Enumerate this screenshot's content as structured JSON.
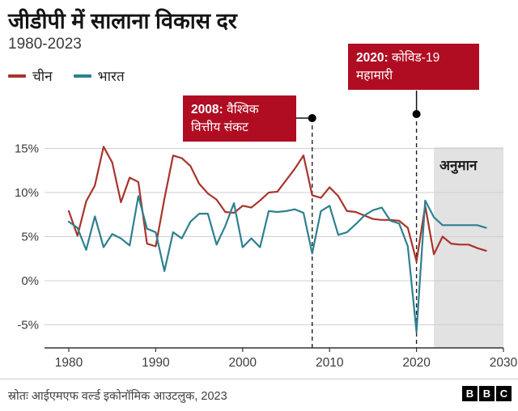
{
  "header": {
    "title": "जीडीपी में सालाना विकास दर",
    "subtitle": "1980-2023"
  },
  "legend": [
    {
      "label": "चीन",
      "color": "#a8342c"
    },
    {
      "label": "भारत",
      "color": "#2e8090"
    }
  ],
  "annotations": [
    {
      "year": 2008,
      "bold": "2008:",
      "text": " वैश्विक वित्तीय संकट",
      "box_color": "#b00d23"
    },
    {
      "year": 2020,
      "bold": "2020:",
      "text": " कोविड-19 महामारी",
      "box_color": "#b00d23"
    }
  ],
  "forecast_label": "अनुमान",
  "footer": {
    "source": "स्रोतः आईएमएफ वर्ल्ड इकोनॉमिक आउटलुक, 2023",
    "logo_letters": [
      "B",
      "B",
      "C"
    ]
  },
  "chart_data": {
    "type": "line",
    "title": "जीडीपी में सालाना विकास दर",
    "subtitle": "1980-2023",
    "xlabel": "",
    "ylabel": "",
    "unit": "%",
    "grid": "horizontal",
    "legend_position": "top-left",
    "xlim": [
      1977,
      2031
    ],
    "ylim": [
      -7.5,
      17
    ],
    "yticks": [
      -5,
      0,
      5,
      10,
      15
    ],
    "xticks": [
      1980,
      1990,
      2000,
      2010,
      2020,
      2030
    ],
    "forecast_start": 2022,
    "forecast_region_color": "#e2e2e2",
    "event_lines": [
      2008,
      2020
    ],
    "x": [
      1980,
      1981,
      1982,
      1983,
      1984,
      1985,
      1986,
      1987,
      1988,
      1989,
      1990,
      1991,
      1992,
      1993,
      1994,
      1995,
      1996,
      1997,
      1998,
      1999,
      2000,
      2001,
      2002,
      2003,
      2004,
      2005,
      2006,
      2007,
      2008,
      2009,
      2010,
      2011,
      2012,
      2013,
      2014,
      2015,
      2016,
      2017,
      2018,
      2019,
      2020,
      2021,
      2022,
      2023,
      2024,
      2025,
      2026,
      2027,
      2028
    ],
    "series": [
      {
        "name": "चीन",
        "color": "#a8342c",
        "values": [
          7.9,
          5.1,
          9.0,
          10.8,
          15.2,
          13.4,
          8.9,
          11.7,
          11.2,
          4.2,
          3.9,
          9.3,
          14.2,
          13.9,
          13.0,
          11.0,
          9.9,
          9.2,
          7.8,
          7.7,
          8.5,
          8.3,
          9.1,
          10.0,
          10.1,
          11.4,
          12.7,
          14.2,
          9.7,
          9.4,
          10.6,
          9.6,
          7.9,
          7.8,
          7.4,
          7.0,
          6.9,
          6.9,
          6.8,
          6.0,
          2.2,
          8.5,
          3.0,
          5.0,
          4.2,
          4.1,
          4.1,
          3.7,
          3.4
        ]
      },
      {
        "name": "भारत",
        "color": "#2e8090",
        "values": [
          6.7,
          6.0,
          3.5,
          7.3,
          3.8,
          5.3,
          4.8,
          4.0,
          9.6,
          5.9,
          5.5,
          1.1,
          5.5,
          4.8,
          6.7,
          7.6,
          7.6,
          4.1,
          6.2,
          8.8,
          3.8,
          4.8,
          3.8,
          7.9,
          7.8,
          7.9,
          8.1,
          7.7,
          3.1,
          7.9,
          8.5,
          5.2,
          5.5,
          6.4,
          7.4,
          8.0,
          8.3,
          6.8,
          6.5,
          3.9,
          -5.8,
          9.1,
          7.2,
          6.3,
          6.3,
          6.3,
          6.3,
          6.3,
          6.0
        ]
      }
    ]
  }
}
